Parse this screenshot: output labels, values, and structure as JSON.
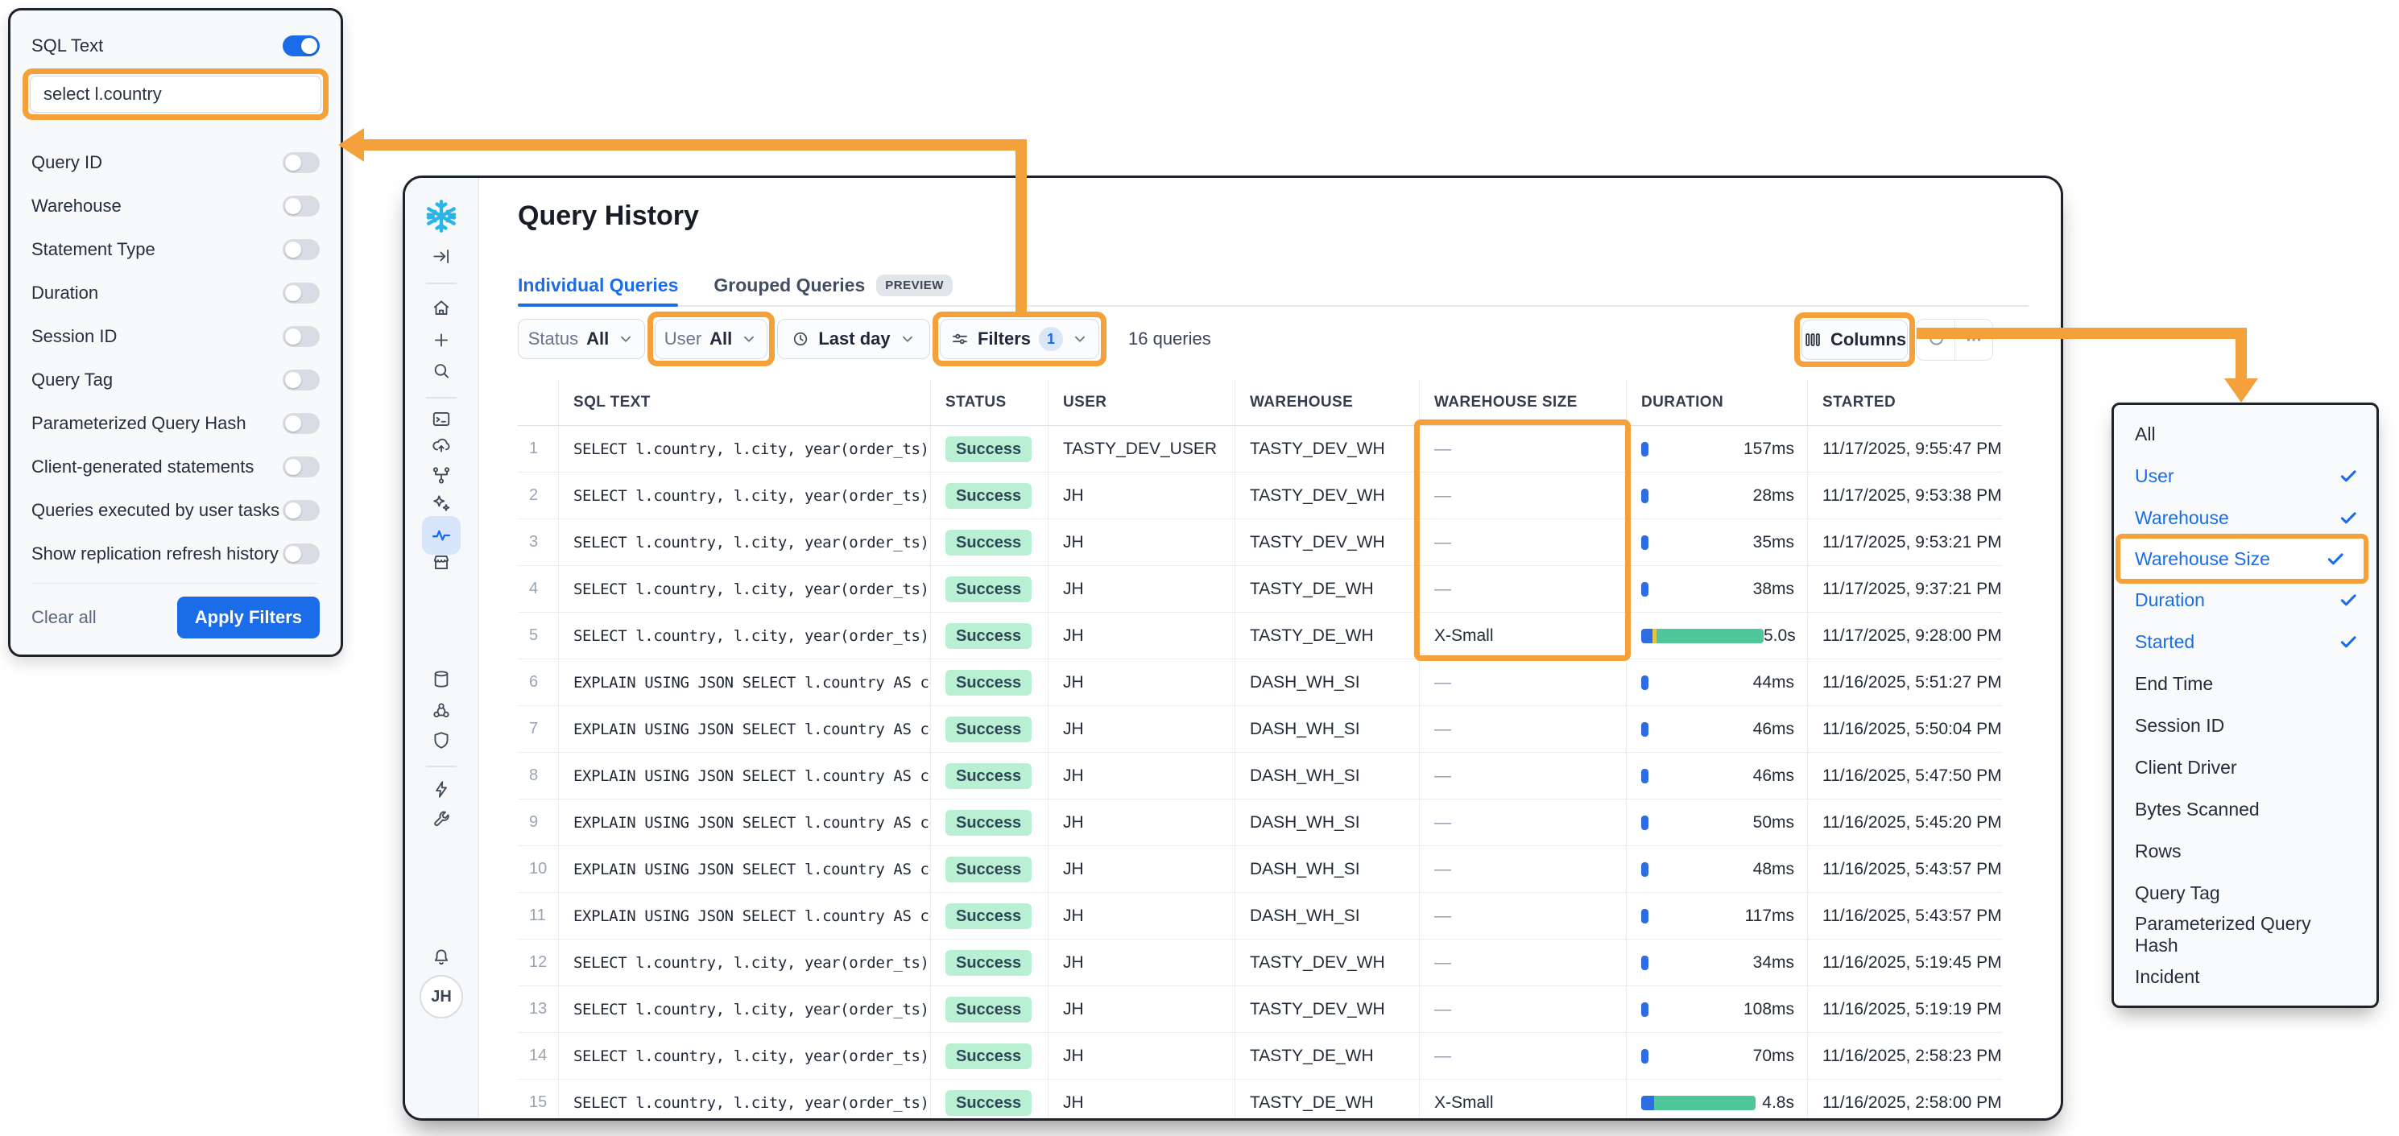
{
  "colors": {
    "accent_blue": "#1A6CE8",
    "highlight_orange": "#F5A13B",
    "snowflake_blue": "#29B5E8",
    "success_bg": "#B9EFD3",
    "success_text": "#2E4756",
    "bar_blue": "#2E6CE3",
    "bar_yellow": "#E7C544",
    "bar_green": "#4FC79A"
  },
  "filter_panel": {
    "sql_text_label": "SQL Text",
    "sql_text_enabled": true,
    "sql_text_value": "select l.country",
    "toggles": [
      "Query ID",
      "Warehouse",
      "Statement Type",
      "Duration",
      "Session ID",
      "Query Tag",
      "Parameterized Query Hash",
      "Client-generated statements",
      "Queries executed by user tasks",
      "Show replication refresh history"
    ],
    "clear_all_label": "Clear all",
    "apply_button_label": "Apply Filters"
  },
  "sidebar": {
    "avatar_initials": "JH",
    "items": [
      {
        "icon": "snowflake",
        "name": "snowflake-logo",
        "interactable": false
      },
      {
        "icon": "collapse",
        "name": "collapse-sidebar"
      },
      {
        "divider": true
      },
      {
        "icon": "home",
        "name": "home"
      },
      {
        "icon": "plus",
        "name": "create-new"
      },
      {
        "icon": "search",
        "name": "search"
      },
      {
        "divider": true
      },
      {
        "icon": "terminal",
        "name": "worksheets"
      },
      {
        "icon": "cloud-up",
        "name": "data-ingestion"
      },
      {
        "icon": "nodes",
        "name": "data-lineage"
      },
      {
        "icon": "sparkle",
        "name": "ai-ml"
      },
      {
        "icon": "activity",
        "name": "monitoring-activity",
        "selected": true
      },
      {
        "icon": "store",
        "name": "marketplace"
      },
      {
        "icon": "database",
        "name": "data"
      },
      {
        "icon": "collab",
        "name": "collaboration"
      },
      {
        "icon": "shield",
        "name": "governance"
      },
      {
        "divider": true
      },
      {
        "icon": "bolt",
        "name": "automations"
      },
      {
        "icon": "wrench",
        "name": "admin-tools"
      },
      {
        "icon": "bell",
        "name": "notifications"
      },
      {
        "avatar": true,
        "name": "user-avatar"
      }
    ]
  },
  "header": {
    "title": "Query History",
    "tabs": [
      {
        "label": "Individual Queries",
        "active": true
      },
      {
        "label": "Grouped Queries",
        "badge": "PREVIEW"
      }
    ]
  },
  "toolbar": {
    "status_label": "Status",
    "status_value": "All",
    "user_label": "User",
    "user_value": "All",
    "time_range_value": "Last day",
    "filters_label": "Filters",
    "filters_badge": "1",
    "result_count": "16 queries",
    "columns_button_label": "Columns"
  },
  "table": {
    "headers": [
      "SQL TEXT",
      "STATUS",
      "USER",
      "WAREHOUSE",
      "WAREHOUSE SIZE",
      "DURATION",
      "STARTED"
    ],
    "rows": [
      {
        "num": "1",
        "sql": "SELECT l.country, l.city, year(order_ts),",
        "status": "Success",
        "user": "TASTY_DEV_USER",
        "warehouse": "TASTY_DEV_WH",
        "size": "—",
        "duration": "157ms",
        "bar": [
          [
            "blue",
            9
          ]
        ],
        "started": "11/17/2025, 9:55:47 PM"
      },
      {
        "num": "2",
        "sql": "SELECT l.country, l.city, year(order_ts),",
        "status": "Success",
        "user": "JH",
        "warehouse": "TASTY_DEV_WH",
        "size": "—",
        "duration": "28ms",
        "bar": [
          [
            "blue",
            9
          ]
        ],
        "started": "11/17/2025, 9:53:38 PM"
      },
      {
        "num": "3",
        "sql": "SELECT l.country, l.city, year(order_ts),",
        "status": "Success",
        "user": "JH",
        "warehouse": "TASTY_DEV_WH",
        "size": "—",
        "duration": "35ms",
        "bar": [
          [
            "blue",
            9
          ]
        ],
        "started": "11/17/2025, 9:53:21 PM"
      },
      {
        "num": "4",
        "sql": "SELECT l.country, l.city, year(order_ts),",
        "status": "Success",
        "user": "JH",
        "warehouse": "TASTY_DE_WH",
        "size": "—",
        "duration": "38ms",
        "bar": [
          [
            "blue",
            9
          ]
        ],
        "started": "11/17/2025, 9:37:21 PM"
      },
      {
        "num": "5",
        "sql": "SELECT l.country, l.city, year(order_ts),",
        "status": "Success",
        "user": "JH",
        "warehouse": "TASTY_DE_WH",
        "size": "X-Small",
        "duration": "5.0s",
        "bar": [
          [
            "blue",
            14
          ],
          [
            "yellow",
            5
          ],
          [
            "green",
            133
          ]
        ],
        "started": "11/17/2025, 9:28:00 PM"
      },
      {
        "num": "6",
        "sql": "EXPLAIN USING JSON SELECT l.country AS cou",
        "status": "Success",
        "user": "JH",
        "warehouse": "DASH_WH_SI",
        "size": "—",
        "duration": "44ms",
        "bar": [
          [
            "blue",
            9
          ]
        ],
        "started": "11/16/2025, 5:51:27 PM"
      },
      {
        "num": "7",
        "sql": "EXPLAIN USING JSON SELECT l.country AS cou",
        "status": "Success",
        "user": "JH",
        "warehouse": "DASH_WH_SI",
        "size": "—",
        "duration": "46ms",
        "bar": [
          [
            "blue",
            9
          ]
        ],
        "started": "11/16/2025, 5:50:04 PM"
      },
      {
        "num": "8",
        "sql": "EXPLAIN USING JSON SELECT l.country AS cou",
        "status": "Success",
        "user": "JH",
        "warehouse": "DASH_WH_SI",
        "size": "—",
        "duration": "46ms",
        "bar": [
          [
            "blue",
            9
          ]
        ],
        "started": "11/16/2025, 5:47:50 PM"
      },
      {
        "num": "9",
        "sql": "EXPLAIN USING JSON SELECT l.country AS cou",
        "status": "Success",
        "user": "JH",
        "warehouse": "DASH_WH_SI",
        "size": "—",
        "duration": "50ms",
        "bar": [
          [
            "blue",
            9
          ]
        ],
        "started": "11/16/2025, 5:45:20 PM"
      },
      {
        "num": "10",
        "sql": "EXPLAIN USING JSON SELECT l.country AS cou",
        "status": "Success",
        "user": "JH",
        "warehouse": "DASH_WH_SI",
        "size": "—",
        "duration": "48ms",
        "bar": [
          [
            "blue",
            9
          ]
        ],
        "started": "11/16/2025, 5:43:57 PM"
      },
      {
        "num": "11",
        "sql": "EXPLAIN USING JSON SELECT l.country AS cou",
        "status": "Success",
        "user": "JH",
        "warehouse": "DASH_WH_SI",
        "size": "—",
        "duration": "117ms",
        "bar": [
          [
            "blue",
            9
          ]
        ],
        "started": "11/16/2025, 5:43:57 PM"
      },
      {
        "num": "12",
        "sql": "SELECT l.country, l.city, year(order_ts),",
        "status": "Success",
        "user": "JH",
        "warehouse": "TASTY_DEV_WH",
        "size": "—",
        "duration": "34ms",
        "bar": [
          [
            "blue",
            9
          ]
        ],
        "started": "11/16/2025, 5:19:45 PM"
      },
      {
        "num": "13",
        "sql": "SELECT l.country, l.city, year(order_ts),",
        "status": "Success",
        "user": "JH",
        "warehouse": "TASTY_DEV_WH",
        "size": "—",
        "duration": "108ms",
        "bar": [
          [
            "blue",
            9
          ]
        ],
        "started": "11/16/2025, 5:19:19 PM"
      },
      {
        "num": "14",
        "sql": "SELECT l.country, l.city, year(order_ts),",
        "status": "Success",
        "user": "JH",
        "warehouse": "TASTY_DE_WH",
        "size": "—",
        "duration": "70ms",
        "bar": [
          [
            "blue",
            9
          ]
        ],
        "started": "11/16/2025, 2:58:23 PM"
      },
      {
        "num": "15",
        "sql": "SELECT l.country, l.city, year(order_ts),",
        "status": "Success",
        "user": "JH",
        "warehouse": "TASTY_DE_WH",
        "size": "X-Small",
        "duration": "4.8s",
        "bar": [
          [
            "blue",
            16
          ],
          [
            "green",
            126
          ]
        ],
        "started": "11/16/2025, 2:58:00 PM"
      }
    ]
  },
  "columns_menu": {
    "items": [
      {
        "label": "All",
        "checked": false
      },
      {
        "label": "User",
        "checked": true
      },
      {
        "label": "Warehouse",
        "checked": true
      },
      {
        "label": "Warehouse Size",
        "checked": true,
        "highlighted": true
      },
      {
        "label": "Duration",
        "checked": true
      },
      {
        "label": "Started",
        "checked": true
      },
      {
        "label": "End Time",
        "checked": false
      },
      {
        "label": "Session ID",
        "checked": false
      },
      {
        "label": "Client Driver",
        "checked": false
      },
      {
        "label": "Bytes Scanned",
        "checked": false
      },
      {
        "label": "Rows",
        "checked": false
      },
      {
        "label": "Query Tag",
        "checked": false
      },
      {
        "label": "Parameterized Query Hash",
        "checked": false
      },
      {
        "label": "Incident",
        "checked": false
      }
    ]
  }
}
